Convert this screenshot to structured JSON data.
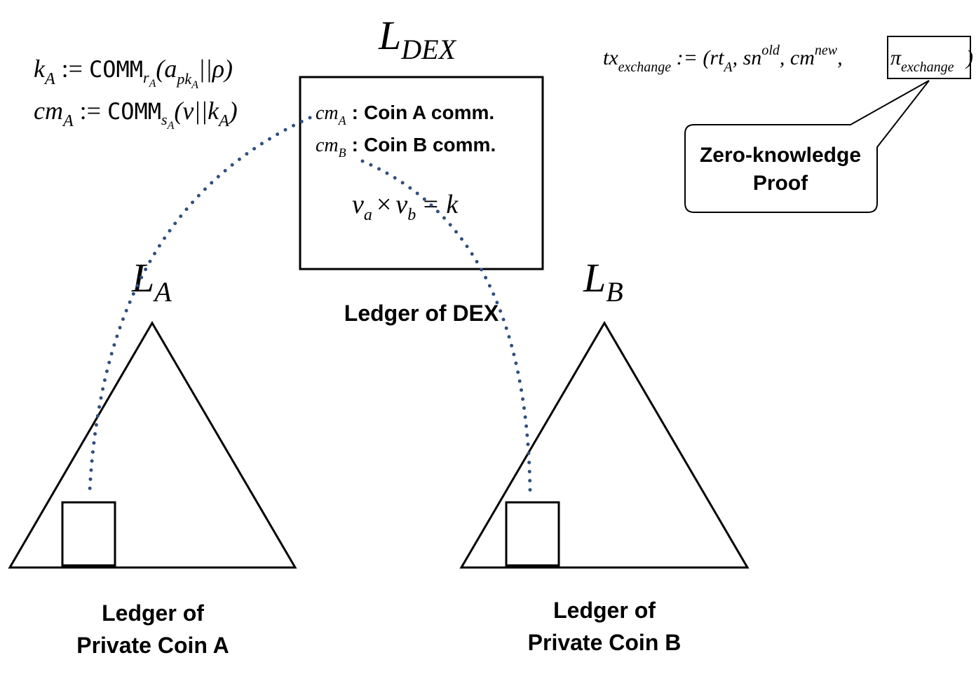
{
  "dex": {
    "title_main": "L",
    "title_sub": "DEX",
    "caption": "Ledger of DEX",
    "entry_a_sym": "cm",
    "entry_a_sub": "A",
    "entry_a_label": "Coin A comm.",
    "entry_b_sym": "cm",
    "entry_b_sub": "B",
    "entry_b_label": "Coin B comm.",
    "colon": ":",
    "invariant": {
      "va": "v",
      "va_sub": "a",
      "times": "×",
      "vb": "v",
      "vb_sub": "b",
      "eq": "= k"
    }
  },
  "ledger_a": {
    "title_main": "L",
    "title_sub": "A",
    "caption_line1": "Ledger of",
    "caption_line2": "Private Coin A"
  },
  "ledger_b": {
    "title_main": "L",
    "title_sub": "B",
    "caption_line1": "Ledger of",
    "caption_line2": "Private Coin B"
  },
  "formulas": {
    "k_def": {
      "lhs": "k",
      "lhs_sub": "A",
      "assign": " := ",
      "comm": "COMM",
      "comm_sub": "r",
      "comm_sub_sub": "A",
      "open": "(a",
      "a_sub": "pk",
      "a_sub_sub": "A",
      "rest": "||ρ)"
    },
    "cm_def": {
      "lhs": "cm",
      "lhs_sub": "A",
      "assign": " := ",
      "comm": "COMM",
      "comm_sub": "s",
      "comm_sub_sub": "A",
      "open": "(v||k",
      "k_sub": "A",
      "close": ")"
    },
    "tx": {
      "lhs": "tx",
      "lhs_sub": "exchange",
      "assign": " := (rt",
      "rt_sub": "A",
      "sn": ", sn",
      "sn_sup": "old",
      "cm": ", cm",
      "cm_sup": "new",
      "comma": ",",
      "pi": "π",
      "pi_sub": "exchange",
      "close": ")"
    }
  },
  "callout": {
    "line1": "Zero-knowledge",
    "line2": "Proof"
  },
  "colors": {
    "stroke": "#000000",
    "dotted_link": "#2f4f7f"
  }
}
